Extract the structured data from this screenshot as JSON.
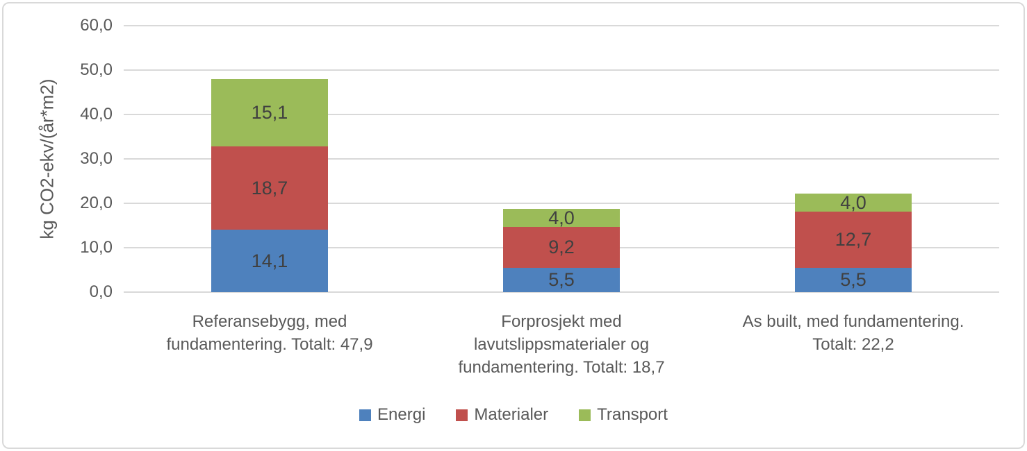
{
  "chart_data": {
    "type": "bar",
    "stacked": true,
    "title": "",
    "xlabel": "",
    "ylabel": "kg CO2-ekv/(år*m2)",
    "ylim": [
      0,
      60
    ],
    "ytick_step": 10,
    "ytick_labels": [
      "0,0",
      "10,0",
      "20,0",
      "30,0",
      "40,0",
      "50,0",
      "60,0"
    ],
    "grid": true,
    "legend_position": "bottom",
    "categories": [
      "Referansebygg, med fundamentering. Totalt: 47,9",
      "Forprosjekt med lavutslippsmaterialer og fundamentering. Totalt: 18,7",
      "As built, med fundamentering. Totalt: 22,2"
    ],
    "totals": [
      "47,9",
      "18,7",
      "22,2"
    ],
    "series": [
      {
        "name": "Energi",
        "color": "#4E81BD",
        "values": [
          14.1,
          5.5,
          5.5
        ],
        "value_labels": [
          "14,1",
          "5,5",
          "5,5"
        ]
      },
      {
        "name": "Materialer",
        "color": "#C0504D",
        "values": [
          18.7,
          9.2,
          12.7
        ],
        "value_labels": [
          "18,7",
          "9,2",
          "12,7"
        ]
      },
      {
        "name": "Transport",
        "color": "#9BBB59",
        "values": [
          15.1,
          4.0,
          4.0
        ],
        "value_labels": [
          "15,1",
          "4,0",
          "4,0"
        ]
      }
    ],
    "colors": {
      "grid": "#D9D9D9",
      "axis_text": "#595959",
      "value_label_text": "#404040",
      "frame_border": "#D9D9D9",
      "background": "#FFFFFF"
    }
  }
}
